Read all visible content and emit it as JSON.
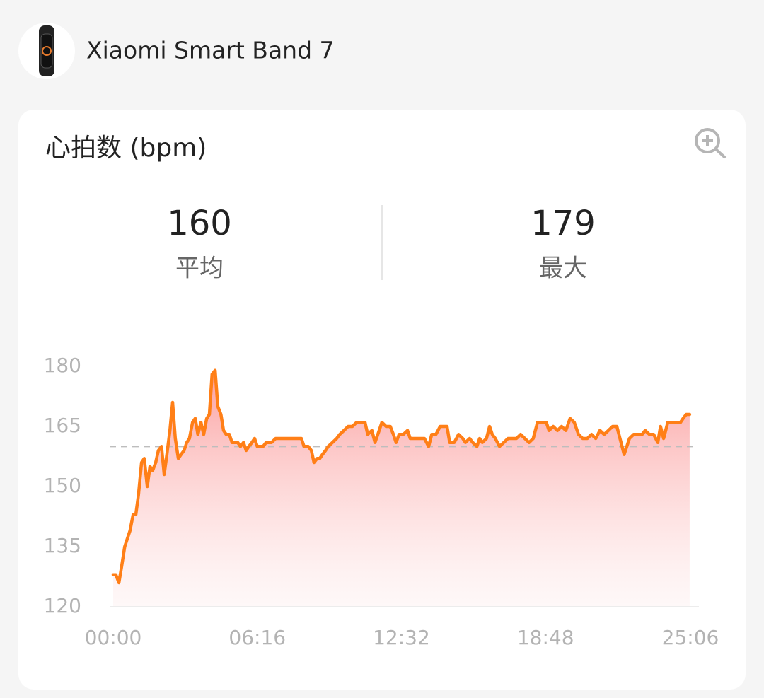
{
  "device": {
    "name": "Xiaomi Smart Band 7"
  },
  "chart_data": {
    "type": "area",
    "title": "心拍数 (bpm)",
    "stats": [
      {
        "name": "平均",
        "value": 160
      },
      {
        "name": "最大",
        "value": 179
      }
    ],
    "color": "#ff7f17",
    "xlim": [
      0,
      1506
    ],
    "xticks": [
      {
        "value": 0,
        "label": "00:00"
      },
      {
        "value": 376,
        "label": "06:16"
      },
      {
        "value": 752,
        "label": "12:32"
      },
      {
        "value": 1128,
        "label": "18:48"
      },
      {
        "value": 1506,
        "label": "25:06"
      }
    ],
    "ylim": [
      120,
      180
    ],
    "yticks": [
      120,
      135,
      150,
      165,
      180
    ],
    "x": [
      0,
      7,
      15,
      22,
      30,
      37,
      44,
      52,
      59,
      66,
      74,
      81,
      89,
      96,
      103,
      111,
      118,
      126,
      133,
      140,
      148,
      155,
      162,
      170,
      177,
      185,
      192,
      199,
      207,
      214,
      221,
      229,
      236,
      244,
      251,
      258,
      266,
      273,
      281,
      288,
      295,
      303,
      310,
      317,
      325,
      332,
      340,
      347,
      354,
      362,
      369,
      376,
      384,
      391,
      399,
      413,
      424,
      443,
      461,
      480,
      491,
      498,
      509,
      517,
      524,
      532,
      539,
      546,
      554,
      561,
      572,
      583,
      591,
      602,
      613,
      624,
      635,
      646,
      657,
      664,
      675,
      683,
      694,
      701,
      712,
      723,
      731,
      738,
      746,
      757,
      768,
      775,
      786,
      797,
      812,
      823,
      831,
      842,
      853,
      864,
      871,
      878,
      890,
      901,
      912,
      919,
      930,
      938,
      949,
      956,
      963,
      974,
      982,
      989,
      997,
      1008,
      1019,
      1030,
      1041,
      1052,
      1063,
      1074,
      1085,
      1096,
      1107,
      1118,
      1130,
      1137,
      1148,
      1159,
      1170,
      1181,
      1192,
      1203,
      1214,
      1225,
      1237,
      1248,
      1259,
      1270,
      1281,
      1292,
      1303,
      1314,
      1325,
      1333,
      1340,
      1347,
      1358,
      1369,
      1380,
      1388,
      1399,
      1410,
      1421,
      1428,
      1436,
      1447,
      1458,
      1469,
      1480,
      1487,
      1495,
      1504
    ],
    "values": [
      128,
      128,
      126,
      130,
      135,
      137,
      139,
      143,
      143,
      148,
      156,
      157,
      150,
      155,
      154,
      156,
      159,
      160,
      153,
      158,
      164,
      171,
      162,
      157,
      158,
      159,
      161,
      162,
      166,
      167,
      163,
      166,
      163,
      167,
      168,
      178,
      179,
      170,
      168,
      164,
      163,
      163,
      161,
      161,
      161,
      160,
      161,
      159,
      160,
      161,
      162,
      160,
      160,
      160,
      161,
      161,
      162,
      162,
      162,
      162,
      162,
      160,
      160,
      159,
      156,
      157,
      157,
      158,
      159,
      160,
      161,
      162,
      163,
      164,
      165,
      165,
      166,
      166,
      166,
      163,
      164,
      161,
      164,
      166,
      165,
      165,
      163,
      161,
      163,
      163,
      164,
      162,
      162,
      162,
      162,
      160,
      163,
      163,
      165,
      165,
      165,
      161,
      161,
      163,
      162,
      161,
      162,
      161,
      160,
      162,
      161,
      162,
      165,
      163,
      162,
      160,
      161,
      162,
      162,
      162,
      163,
      162,
      161,
      162,
      166,
      166,
      166,
      164,
      165,
      164,
      165,
      164,
      167,
      166,
      163,
      162,
      162,
      163,
      162,
      164,
      163,
      164,
      165,
      165,
      161,
      158,
      160,
      162,
      163,
      163,
      163,
      164,
      163,
      163,
      161,
      165,
      162,
      166,
      166,
      166,
      166,
      167,
      168,
      168
    ]
  }
}
